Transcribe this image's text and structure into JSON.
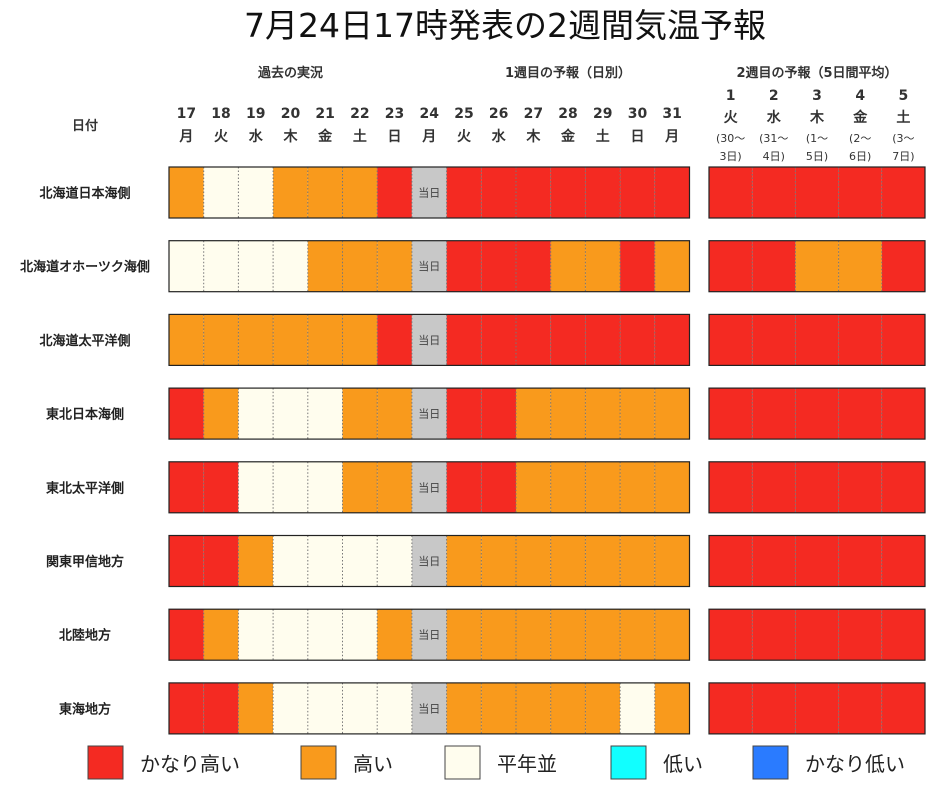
{
  "title": "7月24日17時発表の2週間気温予報",
  "chart_data": {
    "type": "heatmap",
    "title": "7月24日17時発表の2週間気温予報",
    "row_header": "日付",
    "groups": [
      {
        "label": "過去の実況"
      },
      {
        "label": "1週目の予報（日別）"
      },
      {
        "label": "2週目の予報（5日間平均）"
      }
    ],
    "daily_days": [
      {
        "num": "17",
        "dow": "月"
      },
      {
        "num": "18",
        "dow": "火"
      },
      {
        "num": "19",
        "dow": "水"
      },
      {
        "num": "20",
        "dow": "木"
      },
      {
        "num": "21",
        "dow": "金"
      },
      {
        "num": "22",
        "dow": "土"
      },
      {
        "num": "23",
        "dow": "日"
      },
      {
        "num": "24",
        "dow": "月"
      },
      {
        "num": "25",
        "dow": "火"
      },
      {
        "num": "26",
        "dow": "水"
      },
      {
        "num": "27",
        "dow": "木"
      },
      {
        "num": "28",
        "dow": "金"
      },
      {
        "num": "29",
        "dow": "土"
      },
      {
        "num": "30",
        "dow": "日"
      },
      {
        "num": "31",
        "dow": "月"
      }
    ],
    "week2_days": [
      {
        "num": "1",
        "dow": "火",
        "range1": "(30～",
        "range2": "3日)"
      },
      {
        "num": "2",
        "dow": "水",
        "range1": "(31～",
        "range2": "4日)"
      },
      {
        "num": "3",
        "dow": "木",
        "range1": "(1～",
        "range2": "5日)"
      },
      {
        "num": "4",
        "dow": "金",
        "range1": "(2～",
        "range2": "6日)"
      },
      {
        "num": "5",
        "dow": "土",
        "range1": "(3～",
        "range2": "7日)"
      }
    ],
    "today_label": "当日",
    "categories": [
      "かなり高い",
      "高い",
      "平年並",
      "低い",
      "かなり低い"
    ],
    "colors": {
      "かなり高い": "#f42a22",
      "高い": "#f99a1c",
      "平年並": "#fffdee",
      "低い": "#11ffff",
      "かなり低い": "#2a7bff",
      "当日": "#c8c8c8"
    },
    "rows": [
      {
        "region": "北海道日本海側",
        "daily": [
          "高い",
          "平年並",
          "平年並",
          "高い",
          "高い",
          "高い",
          "かなり高い",
          "当日",
          "かなり高い",
          "かなり高い",
          "かなり高い",
          "かなり高い",
          "かなり高い",
          "かなり高い",
          "かなり高い"
        ],
        "week2": [
          "かなり高い",
          "かなり高い",
          "かなり高い",
          "かなり高い",
          "かなり高い"
        ]
      },
      {
        "region": "北海道オホーツク海側",
        "daily": [
          "平年並",
          "平年並",
          "平年並",
          "平年並",
          "高い",
          "高い",
          "高い",
          "当日",
          "かなり高い",
          "かなり高い",
          "かなり高い",
          "高い",
          "高い",
          "かなり高い",
          "高い"
        ],
        "week2": [
          "かなり高い",
          "かなり高い",
          "高い",
          "高い",
          "かなり高い"
        ]
      },
      {
        "region": "北海道太平洋側",
        "daily": [
          "高い",
          "高い",
          "高い",
          "高い",
          "高い",
          "高い",
          "かなり高い",
          "当日",
          "かなり高い",
          "かなり高い",
          "かなり高い",
          "かなり高い",
          "かなり高い",
          "かなり高い",
          "かなり高い"
        ],
        "week2": [
          "かなり高い",
          "かなり高い",
          "かなり高い",
          "かなり高い",
          "かなり高い"
        ]
      },
      {
        "region": "東北日本海側",
        "daily": [
          "かなり高い",
          "高い",
          "平年並",
          "平年並",
          "平年並",
          "高い",
          "高い",
          "当日",
          "かなり高い",
          "かなり高い",
          "高い",
          "高い",
          "高い",
          "高い",
          "高い"
        ],
        "week2": [
          "かなり高い",
          "かなり高い",
          "かなり高い",
          "かなり高い",
          "かなり高い"
        ]
      },
      {
        "region": "東北太平洋側",
        "daily": [
          "かなり高い",
          "かなり高い",
          "平年並",
          "平年並",
          "平年並",
          "高い",
          "高い",
          "当日",
          "かなり高い",
          "かなり高い",
          "高い",
          "高い",
          "高い",
          "高い",
          "高い"
        ],
        "week2": [
          "かなり高い",
          "かなり高い",
          "かなり高い",
          "かなり高い",
          "かなり高い"
        ]
      },
      {
        "region": "関東甲信地方",
        "daily": [
          "かなり高い",
          "かなり高い",
          "高い",
          "平年並",
          "平年並",
          "平年並",
          "平年並",
          "当日",
          "高い",
          "高い",
          "高い",
          "高い",
          "高い",
          "高い",
          "高い"
        ],
        "week2": [
          "かなり高い",
          "かなり高い",
          "かなり高い",
          "かなり高い",
          "かなり高い"
        ]
      },
      {
        "region": "北陸地方",
        "daily": [
          "かなり高い",
          "高い",
          "平年並",
          "平年並",
          "平年並",
          "平年並",
          "高い",
          "当日",
          "高い",
          "高い",
          "高い",
          "高い",
          "高い",
          "高い",
          "高い"
        ],
        "week2": [
          "かなり高い",
          "かなり高い",
          "かなり高い",
          "かなり高い",
          "かなり高い"
        ]
      },
      {
        "region": "東海地方",
        "daily": [
          "かなり高い",
          "かなり高い",
          "高い",
          "平年並",
          "平年並",
          "平年並",
          "平年並",
          "当日",
          "高い",
          "高い",
          "高い",
          "高い",
          "高い",
          "平年並",
          "高い"
        ],
        "week2": [
          "かなり高い",
          "かなり高い",
          "かなり高い",
          "かなり高い",
          "かなり高い"
        ]
      }
    ],
    "legend": [
      "かなり高い",
      "高い",
      "平年並",
      "低い",
      "かなり低い"
    ],
    "legend_placement": "bottom"
  }
}
